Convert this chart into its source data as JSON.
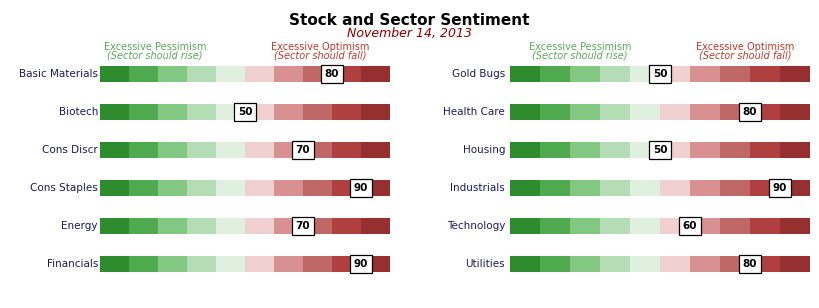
{
  "title": "Stock and Sector Sentiment",
  "subtitle": "November 14, 2013",
  "left_sectors": [
    "Basic Materials",
    "Biotech",
    "Cons Discr",
    "Cons Staples",
    "Energy",
    "Financials"
  ],
  "right_sectors": [
    "Gold Bugs",
    "Health Care",
    "Housing",
    "Industrials",
    "Technology",
    "Utilities"
  ],
  "left_values": [
    80,
    50,
    70,
    90,
    70,
    90
  ],
  "right_values": [
    50,
    80,
    50,
    90,
    60,
    80
  ],
  "green_colors": [
    "#2e8b2e",
    "#4faa4f",
    "#82c882",
    "#b5ddb5",
    "#dff0df"
  ],
  "red_colors": [
    "#f0d0d0",
    "#d99090",
    "#c06868",
    "#b04040",
    "#963030"
  ],
  "label_green": "Excessive Pessimism",
  "label_green2": "(Sector should rise)",
  "label_red": "Excessive Optimism",
  "label_red2": "(Sector should fall)",
  "green_text_color": "#5aaa5a",
  "red_text_color": "#c0392b",
  "title_color": "#000000",
  "subtitle_color": "#8B0000",
  "sector_label_color": "#1a1a5e",
  "value_box_bg": "#ffffff",
  "value_box_border": "#000000"
}
